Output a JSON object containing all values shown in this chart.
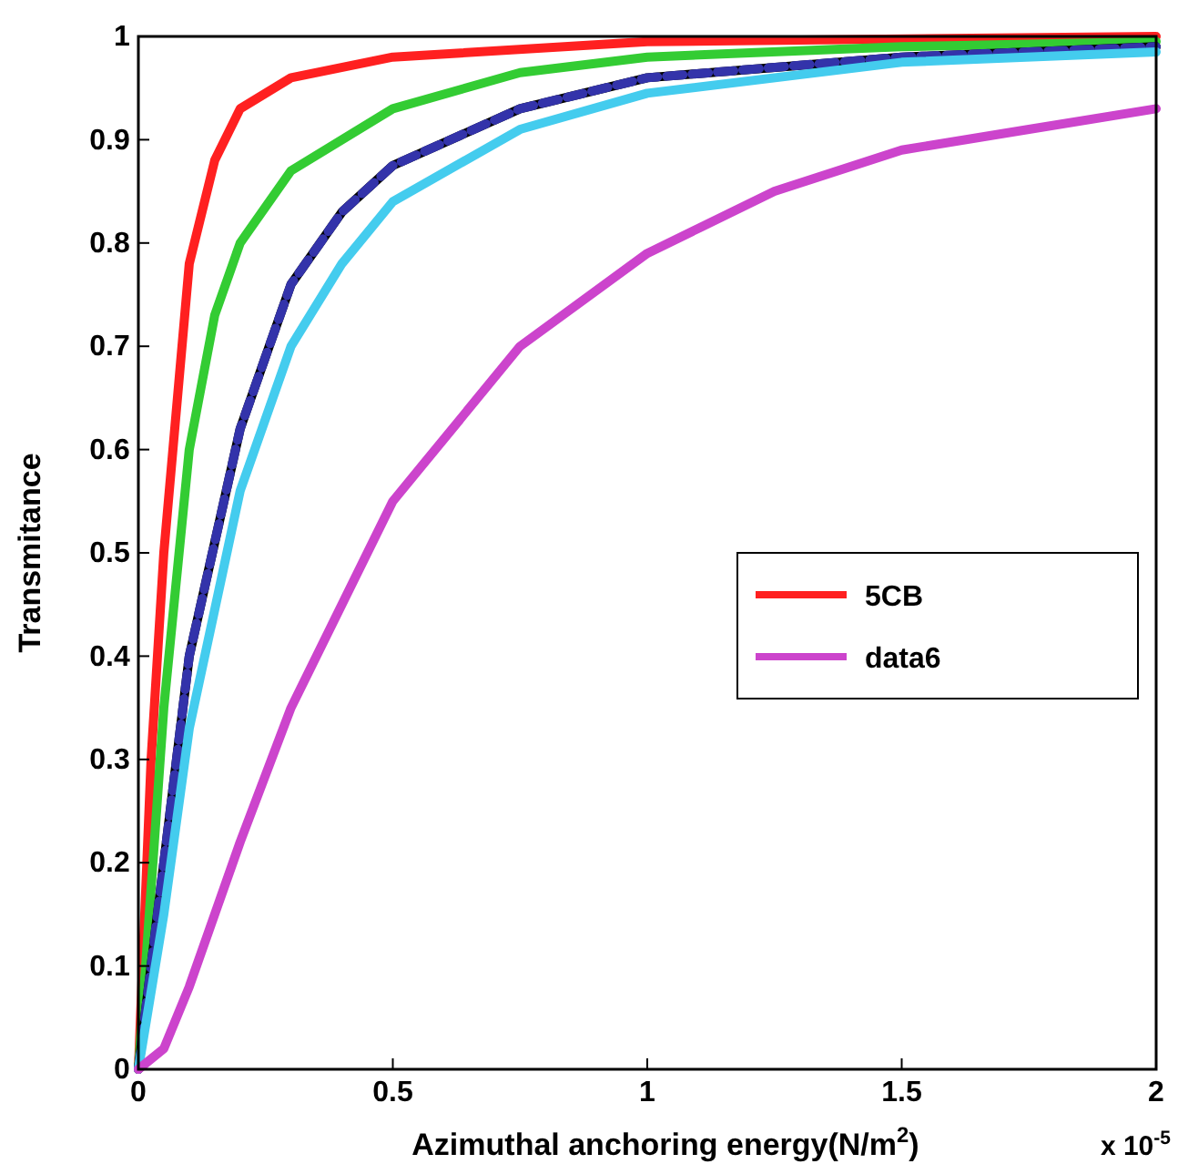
{
  "chart_data": {
    "type": "line",
    "xlabel": "Azimuthal anchoring energy(N/m$^{2}$)",
    "ylabel": "Transmitance",
    "annotations": [
      "x 10$^{-5}$"
    ],
    "xlim": [
      0,
      2
    ],
    "xticks": [
      0,
      0.5,
      1,
      1.5,
      2
    ],
    "ylim": [
      0,
      1
    ],
    "yticks": [
      0,
      0.1,
      0.2,
      0.3,
      0.4,
      0.5,
      0.6,
      0.7,
      0.8,
      0.9,
      1
    ],
    "grid": false,
    "legend": "right",
    "line_style": "solid",
    "marker": "none",
    "series": [
      {
        "name": "5CB",
        "color": "#ff2020",
        "x": [
          0,
          0.025,
          0.05,
          0.1,
          0.15,
          0.2,
          0.3,
          0.5,
          1,
          2
        ],
        "values": [
          0,
          0.3,
          0.5,
          0.78,
          0.88,
          0.93,
          0.96,
          0.98,
          0.995,
          1
        ]
      },
      {
        "color": "#33cc33",
        "x": [
          0,
          0.05,
          0.1,
          0.15,
          0.2,
          0.3,
          0.5,
          0.75,
          1,
          1.5,
          2
        ],
        "values": [
          0,
          0.35,
          0.6,
          0.73,
          0.8,
          0.87,
          0.93,
          0.965,
          0.98,
          0.99,
          0.995
        ]
      },
      {
        "color": "#000000",
        "x": [
          0,
          0.05,
          0.1,
          0.2,
          0.3,
          0.4,
          0.5,
          0.75,
          1,
          1.5,
          2
        ],
        "values": [
          0,
          0.2,
          0.4,
          0.62,
          0.76,
          0.83,
          0.875,
          0.93,
          0.96,
          0.98,
          0.99
        ]
      },
      {
        "color": "#3333aa",
        "line_style": "dashed",
        "x": [
          0,
          0.05,
          0.1,
          0.2,
          0.3,
          0.4,
          0.5,
          0.75,
          1,
          1.5,
          2
        ],
        "values": [
          0,
          0.2,
          0.4,
          0.62,
          0.76,
          0.83,
          0.875,
          0.93,
          0.96,
          0.98,
          0.99
        ]
      },
      {
        "color": "#44ccee",
        "x": [
          0,
          0.05,
          0.1,
          0.2,
          0.3,
          0.4,
          0.5,
          0.75,
          1,
          1.5,
          2
        ],
        "values": [
          0,
          0.15,
          0.33,
          0.56,
          0.7,
          0.78,
          0.84,
          0.91,
          0.945,
          0.975,
          0.985
        ]
      },
      {
        "name": "data6",
        "color": "#cc44cc",
        "x": [
          0,
          0.05,
          0.1,
          0.2,
          0.3,
          0.5,
          0.75,
          1,
          1.25,
          1.5,
          1.75,
          2
        ],
        "values": [
          0,
          0.02,
          0.08,
          0.22,
          0.35,
          0.55,
          0.7,
          0.79,
          0.85,
          0.89,
          0.91,
          0.93
        ]
      }
    ]
  }
}
